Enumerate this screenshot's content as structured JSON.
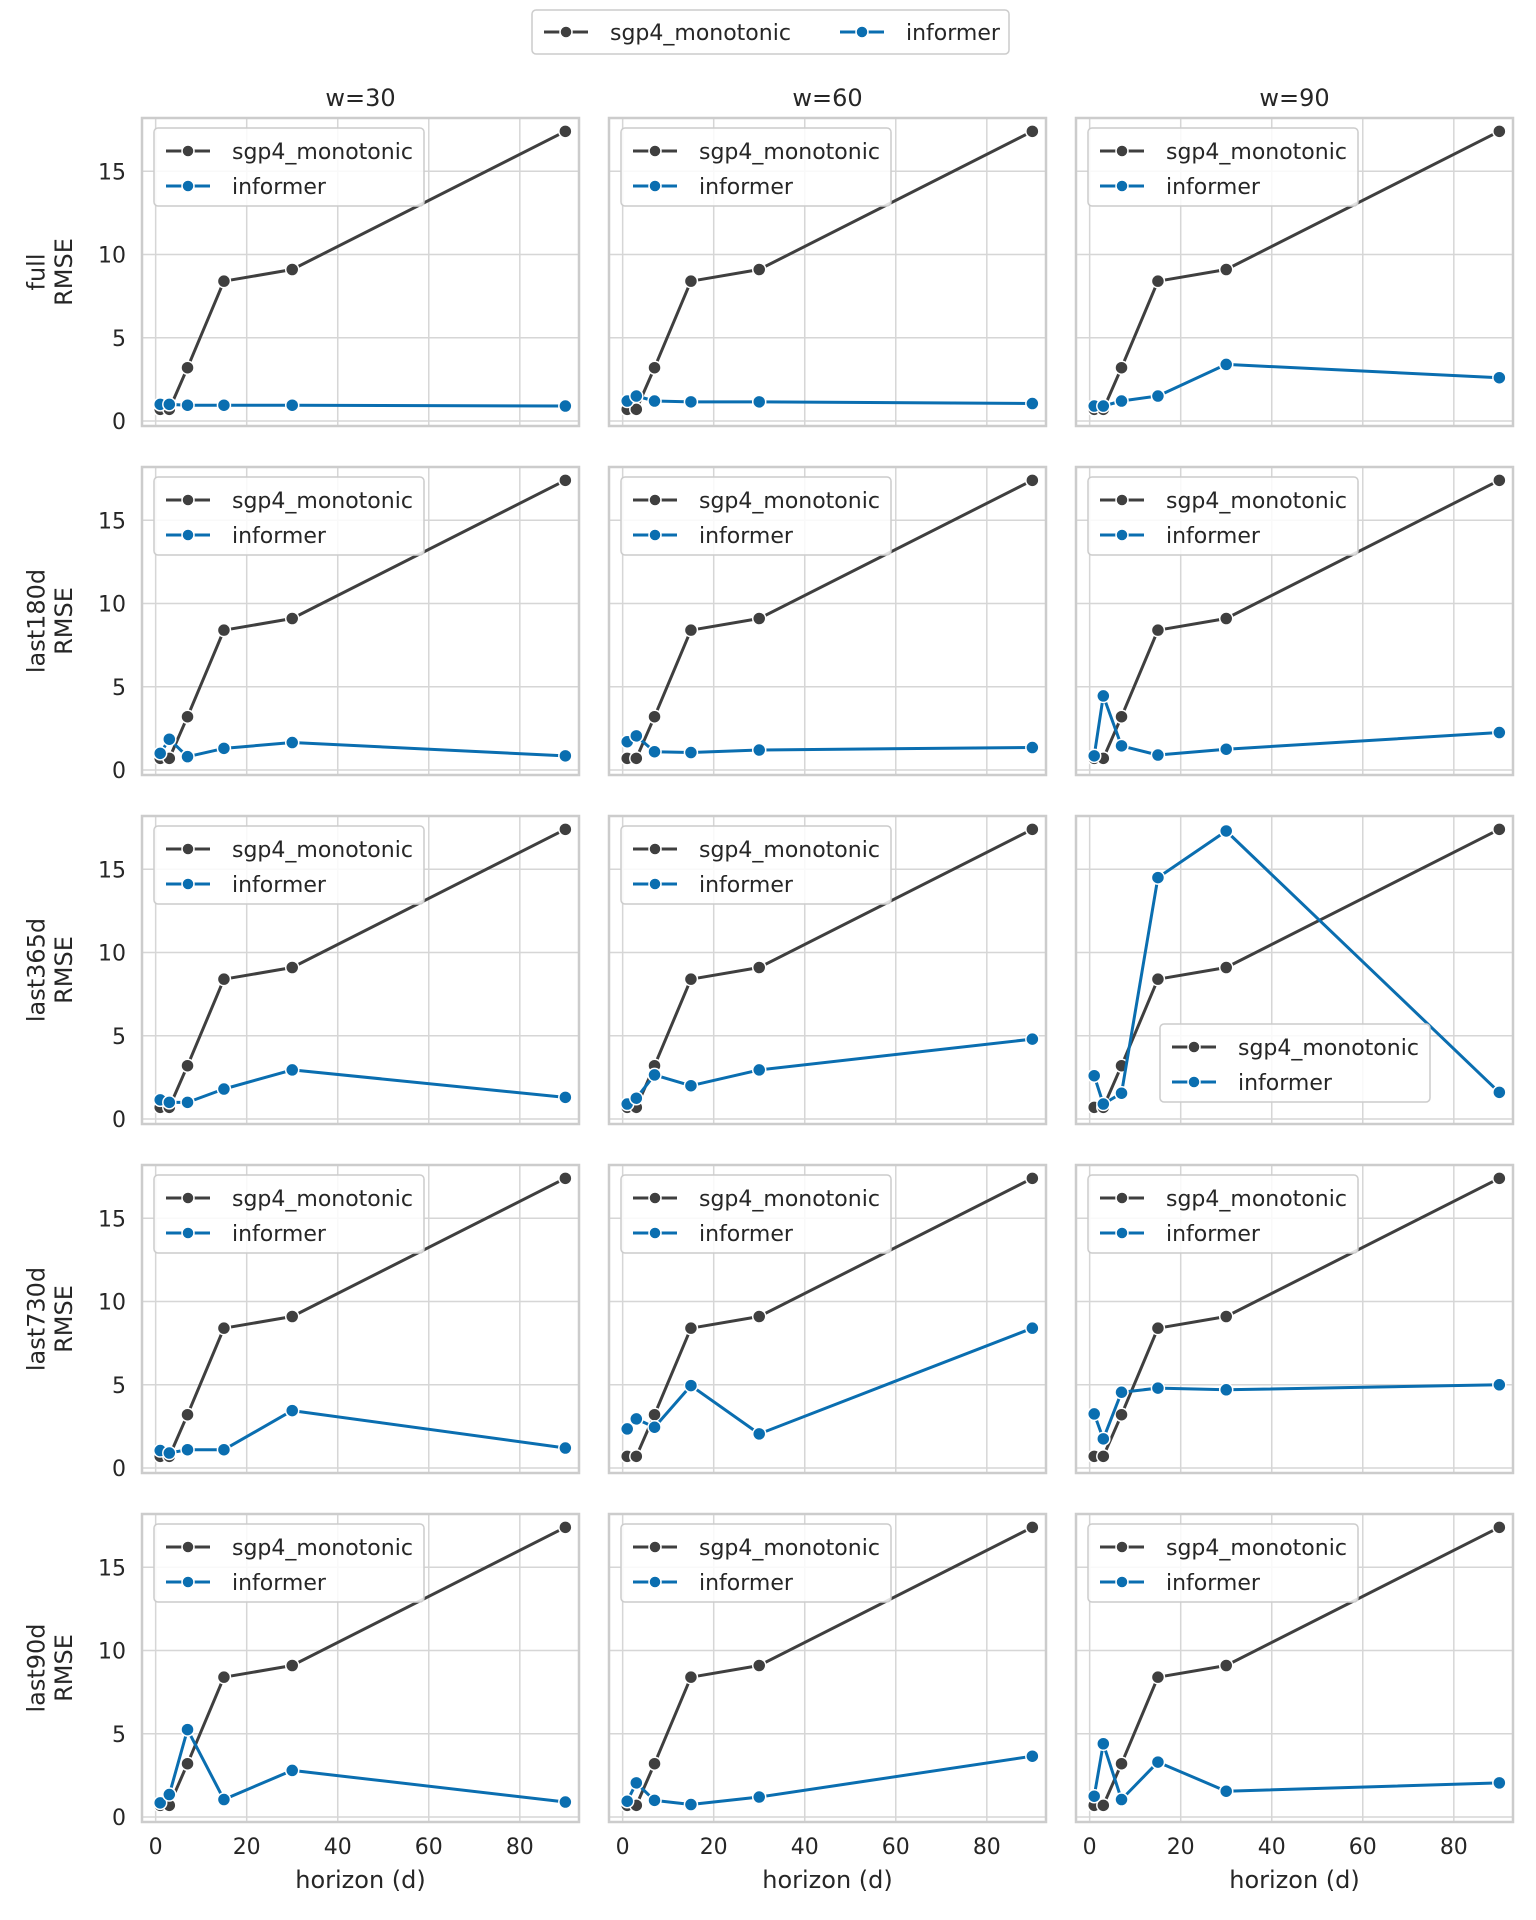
{
  "colors": {
    "sgp4_monotonic": "#3f3f3f",
    "informer": "#0a6eb0",
    "grid": "#d6d6d6",
    "frame": "#cccccc",
    "panel_bg": "#ffffff"
  },
  "chart_data": {
    "type": "line",
    "figure_legend": [
      "sgp4_monotonic",
      "informer"
    ],
    "col_titles": [
      "w=30",
      "w=60",
      "w=90"
    ],
    "row_labels": [
      "full",
      "last180d",
      "last365d",
      "last730d",
      "last90d"
    ],
    "ylabel": "RMSE",
    "xlabel": "horizon (d)",
    "xticks": [
      0,
      20,
      40,
      60,
      80
    ],
    "yticks": [
      0,
      5,
      10,
      15
    ],
    "xlim": [
      -3,
      93
    ],
    "ylim": [
      -0.3,
      18.2
    ],
    "x": [
      1,
      3,
      7,
      15,
      30,
      90
    ],
    "sgp4_monotonic": [
      0.7,
      0.7,
      3.2,
      8.4,
      9.1,
      17.4
    ],
    "panels": [
      {
        "row": "full",
        "col": "w=30",
        "informer": [
          1.0,
          1.0,
          0.95,
          0.95,
          0.95,
          0.9
        ],
        "legend": "upper-left"
      },
      {
        "row": "full",
        "col": "w=60",
        "informer": [
          1.2,
          1.5,
          1.2,
          1.15,
          1.15,
          1.05
        ],
        "legend": "upper-left"
      },
      {
        "row": "full",
        "col": "w=90",
        "informer": [
          0.9,
          0.9,
          1.2,
          1.5,
          3.4,
          2.6
        ],
        "legend": "upper-left"
      },
      {
        "row": "last180d",
        "col": "w=30",
        "informer": [
          1.0,
          1.85,
          0.8,
          1.3,
          1.65,
          0.85
        ],
        "legend": "upper-left"
      },
      {
        "row": "last180d",
        "col": "w=60",
        "informer": [
          1.7,
          2.05,
          1.1,
          1.05,
          1.2,
          1.35
        ],
        "legend": "upper-left"
      },
      {
        "row": "last180d",
        "col": "w=90",
        "informer": [
          0.85,
          4.45,
          1.45,
          0.9,
          1.25,
          2.25
        ],
        "legend": "upper-left"
      },
      {
        "row": "last365d",
        "col": "w=30",
        "informer": [
          1.15,
          1.0,
          1.0,
          1.8,
          2.95,
          1.3
        ],
        "legend": "upper-left"
      },
      {
        "row": "last365d",
        "col": "w=60",
        "informer": [
          0.9,
          1.25,
          2.65,
          2.0,
          2.95,
          4.8
        ],
        "legend": "upper-left"
      },
      {
        "row": "last365d",
        "col": "w=90",
        "informer": [
          2.6,
          0.9,
          1.55,
          14.5,
          17.3,
          1.6
        ],
        "legend": "lower-right"
      },
      {
        "row": "last730d",
        "col": "w=30",
        "informer": [
          1.05,
          0.9,
          1.1,
          1.1,
          3.45,
          1.2
        ],
        "legend": "upper-left"
      },
      {
        "row": "last730d",
        "col": "w=60",
        "informer": [
          2.35,
          2.95,
          2.45,
          4.95,
          2.05,
          8.4
        ],
        "legend": "upper-left"
      },
      {
        "row": "last730d",
        "col": "w=90",
        "informer": [
          3.25,
          1.75,
          4.55,
          4.8,
          4.7,
          5.0
        ],
        "legend": "upper-left"
      },
      {
        "row": "last90d",
        "col": "w=30",
        "informer": [
          0.85,
          1.35,
          5.25,
          1.05,
          2.8,
          0.9
        ],
        "legend": "upper-left"
      },
      {
        "row": "last90d",
        "col": "w=60",
        "informer": [
          0.95,
          2.05,
          1.0,
          0.75,
          1.2,
          3.65
        ],
        "legend": "upper-left"
      },
      {
        "row": "last90d",
        "col": "w=90",
        "informer": [
          1.25,
          4.4,
          1.05,
          3.3,
          1.55,
          2.05
        ],
        "legend": "upper-left"
      }
    ]
  }
}
